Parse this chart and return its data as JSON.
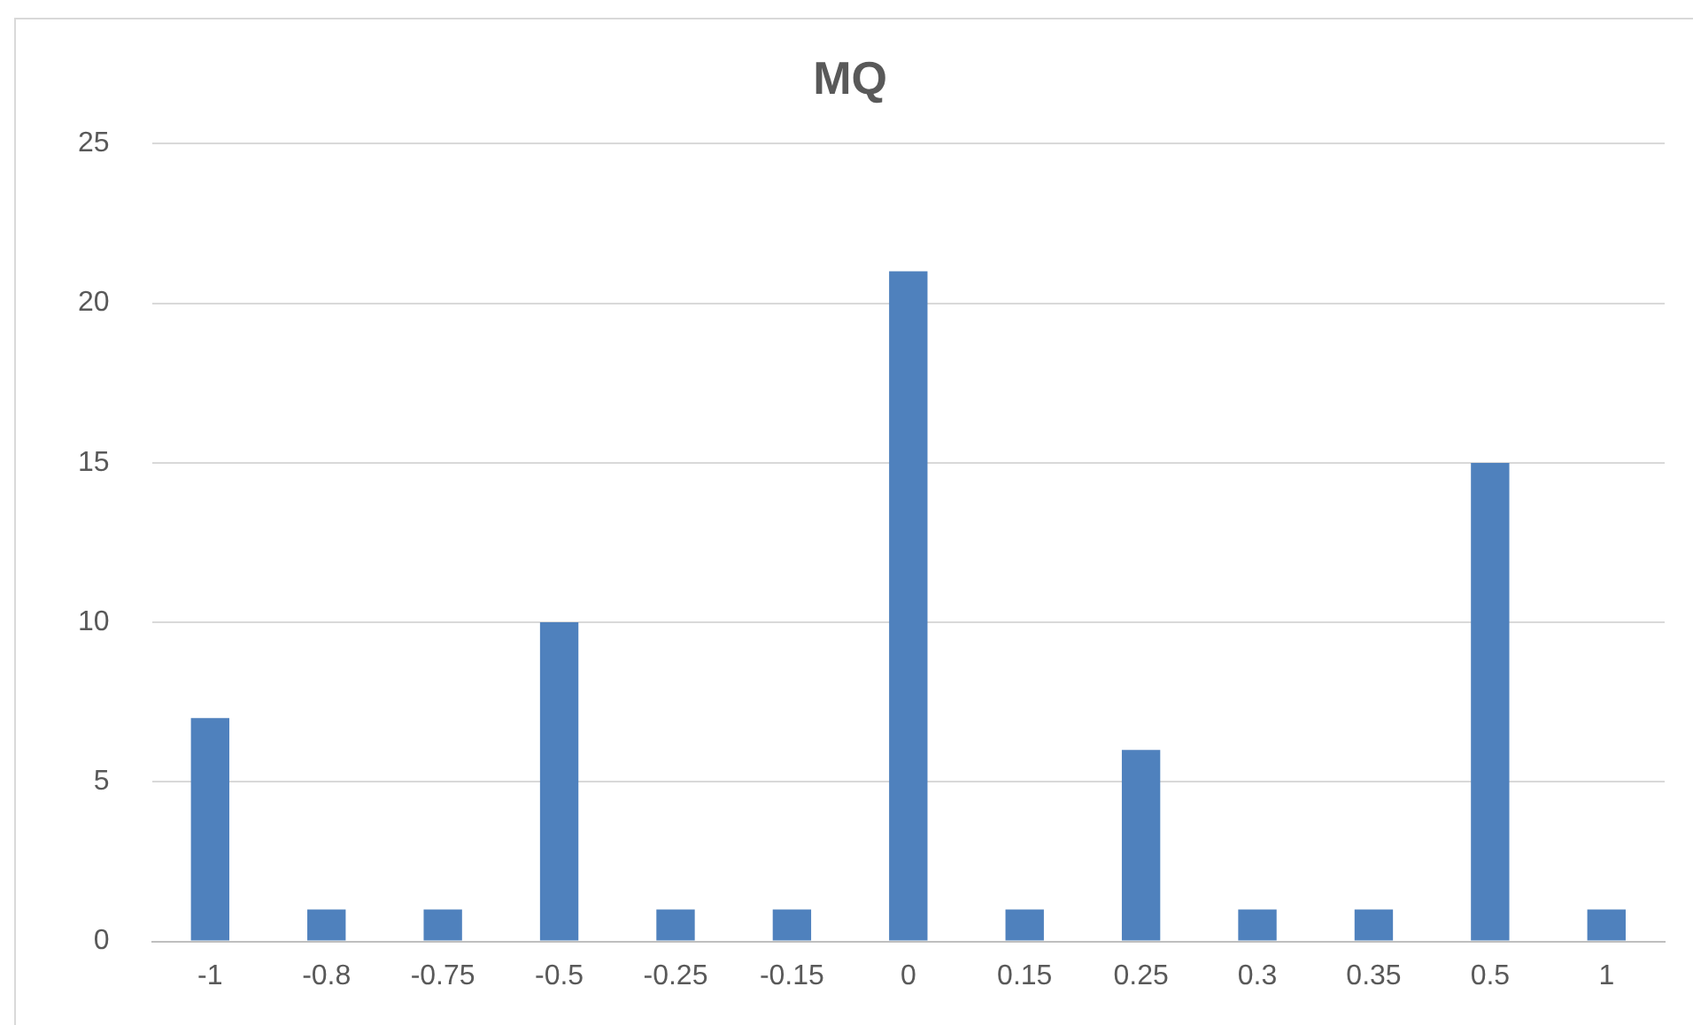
{
  "chart_data": {
    "type": "bar",
    "title": "MQ",
    "categories": [
      "-1",
      "-0.8",
      "-0.75",
      "-0.5",
      "-0.25",
      "-0.15",
      "0",
      "0.15",
      "0.25",
      "0.3",
      "0.35",
      "0.5",
      "1"
    ],
    "values": [
      7,
      1,
      1,
      10,
      1,
      1,
      21,
      1,
      6,
      1,
      1,
      15,
      1
    ],
    "color": "#4f81bd",
    "ylim": [
      0,
      25
    ],
    "yticks": [
      0,
      5,
      10,
      15,
      20,
      25
    ],
    "grid": "y",
    "legend": false
  }
}
